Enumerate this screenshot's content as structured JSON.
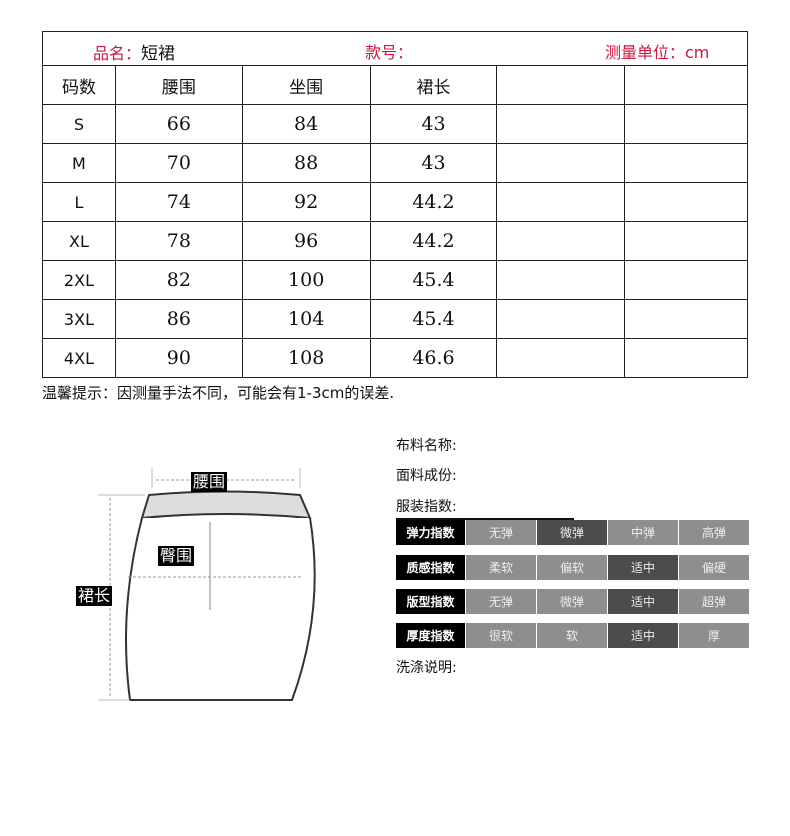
{
  "header": {
    "name_label": "品名：",
    "name_value": "短裙",
    "style_label": "款号：",
    "unit_label": "测量单位：cm"
  },
  "columns": [
    "码数",
    "腰围",
    "坐围",
    "裙长",
    "",
    ""
  ],
  "rows": [
    {
      "size": "S",
      "waist": "66",
      "hip": "84",
      "length": "43"
    },
    {
      "size": "M",
      "waist": "70",
      "hip": "88",
      "length": "43"
    },
    {
      "size": "L",
      "waist": "74",
      "hip": "92",
      "length": "44.2"
    },
    {
      "size": "XL",
      "waist": "78",
      "hip": "96",
      "length": "44.2"
    },
    {
      "size": "2XL",
      "waist": "82",
      "hip": "100",
      "length": "45.4"
    },
    {
      "size": "3XL",
      "waist": "86",
      "hip": "104",
      "length": "45.4"
    },
    {
      "size": "4XL",
      "waist": "90",
      "hip": "108",
      "length": "46.6"
    }
  ],
  "note": "温馨提示：因测量手法不同，可能会有1-3cm的误差.",
  "diagram": {
    "waist": "腰围",
    "hip": "臀围",
    "length": "裙长"
  },
  "info": {
    "fabric_name": "布料名称:",
    "composition": "面料成份:",
    "index_title": "服装指数:",
    "washing": "洗涤说明:"
  },
  "indices": [
    {
      "label": "弹力指数",
      "options": [
        "无弹",
        "微弹",
        "中弹",
        "高弹"
      ],
      "selected": 1
    },
    {
      "label": "质感指数",
      "options": [
        "柔软",
        "偏软",
        "适中",
        "偏硬"
      ],
      "selected": 2
    },
    {
      "label": "版型指数",
      "options": [
        "无弹",
        "微弹",
        "适中",
        "超弹"
      ],
      "selected": 2
    },
    {
      "label": "厚度指数",
      "options": [
        "很软",
        "软",
        "适中",
        "厚"
      ],
      "selected": 2
    }
  ]
}
